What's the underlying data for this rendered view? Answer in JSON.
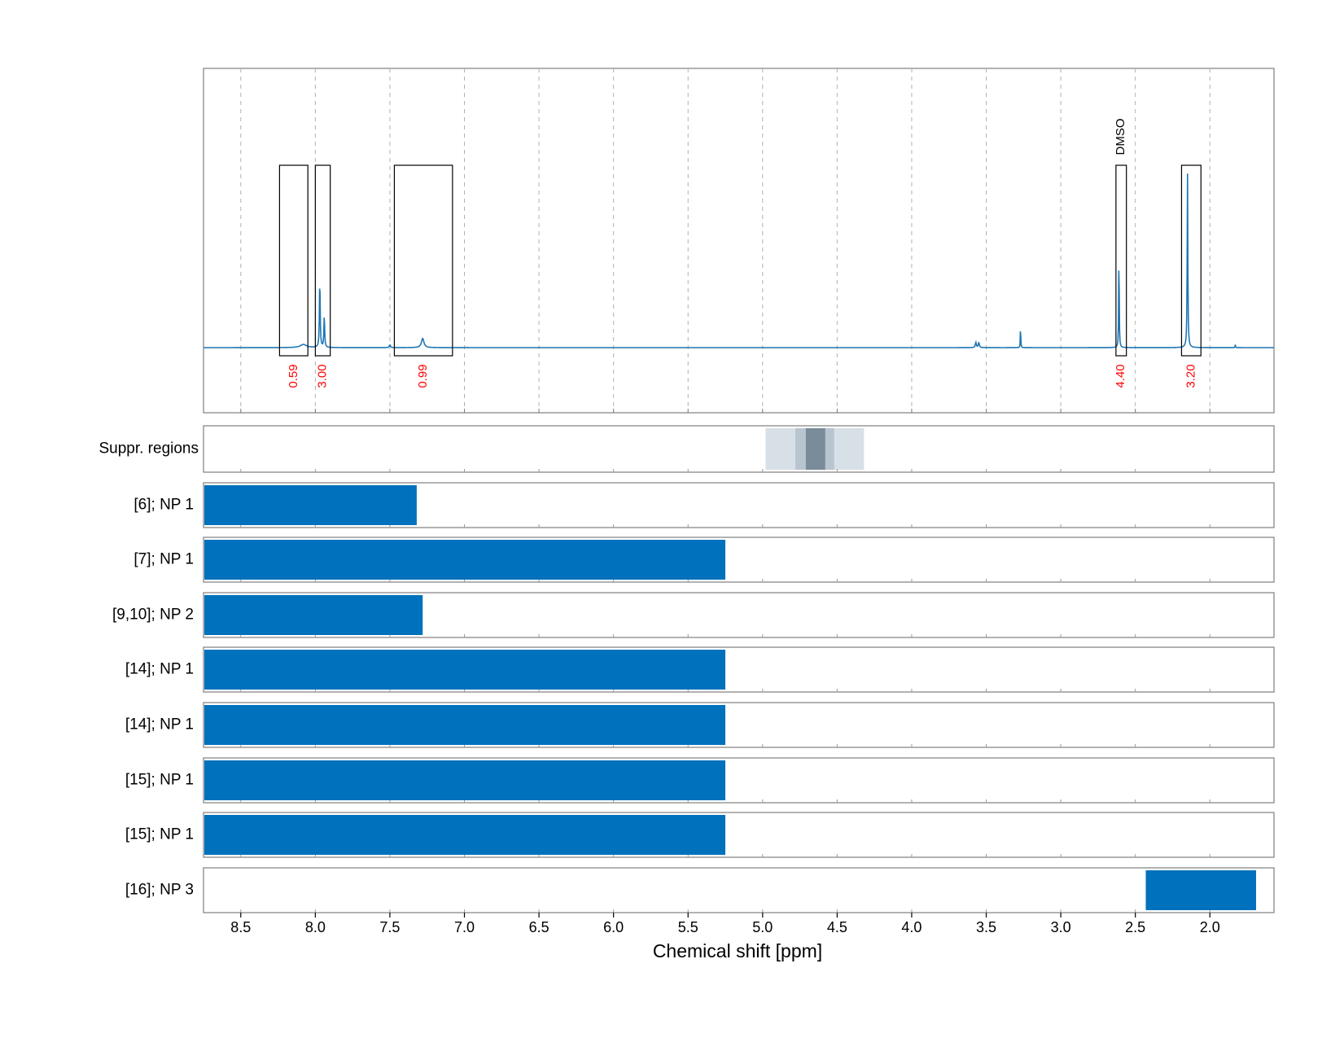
{
  "chart_data": {
    "type": "line",
    "xlabel": "Chemical shift [ppm]",
    "xlim": [
      8.75,
      1.57
    ],
    "x_ticks": [
      8.5,
      8.0,
      7.5,
      7.0,
      6.5,
      6.0,
      5.5,
      5.0,
      4.5,
      4.0,
      3.5,
      3.0,
      2.5,
      2.0
    ],
    "x_tick_labels": [
      "8.5",
      "8.0",
      "7.5",
      "7.0",
      "6.5",
      "6.0",
      "5.5",
      "5.0",
      "4.5",
      "4.0",
      "3.5",
      "3.0",
      "2.5",
      "2.0"
    ],
    "grid": true,
    "colors": {
      "spectrum": "#1f77b4",
      "bar": "#0071bc",
      "integral_label": "#ff0000",
      "suppr_light": "#d8e0e7",
      "suppr_mid": "#b8c4cf",
      "suppr_dark": "#7a8b99"
    },
    "spectrum": {
      "baseline": 0,
      "peaks": [
        {
          "ppm": 8.08,
          "height": 0.012,
          "width": 0.05
        },
        {
          "ppm": 7.97,
          "height": 0.26,
          "width": 0.006
        },
        {
          "ppm": 7.94,
          "height": 0.12,
          "width": 0.006
        },
        {
          "ppm": 7.5,
          "height": 0.01,
          "width": 0.01
        },
        {
          "ppm": 7.28,
          "height": 0.035,
          "width": 0.02
        },
        {
          "ppm": 3.57,
          "height": 0.02,
          "width": 0.008
        },
        {
          "ppm": 3.55,
          "height": 0.02,
          "width": 0.008
        },
        {
          "ppm": 3.27,
          "height": 0.095,
          "width": 0.003
        },
        {
          "ppm": 2.61,
          "height": 0.38,
          "width": 0.004
        },
        {
          "ppm": 2.15,
          "height": 0.66,
          "width": 0.005
        },
        {
          "ppm": 1.83,
          "height": 0.012,
          "width": 0.003
        }
      ]
    },
    "integrals": [
      {
        "from": 8.24,
        "to": 8.05,
        "label": "0.59"
      },
      {
        "from": 8.0,
        "to": 7.9,
        "label": "3.00"
      },
      {
        "from": 7.47,
        "to": 7.08,
        "label": "0.99"
      },
      {
        "from": 2.63,
        "to": 2.56,
        "label": "4.40",
        "annotation": "DMSO"
      },
      {
        "from": 2.19,
        "to": 2.06,
        "label": "3.20"
      }
    ],
    "suppression": {
      "label": "Suppr. regions",
      "bands": [
        {
          "from": 4.98,
          "to": 4.32,
          "shade": "light"
        },
        {
          "from": 4.78,
          "to": 4.52,
          "shade": "mid"
        },
        {
          "from": 4.71,
          "to": 4.58,
          "shade": "dark"
        }
      ]
    },
    "bar_rows": [
      {
        "label": "[6]; NP 1",
        "from": 8.75,
        "to": 7.32
      },
      {
        "label": "[7]; NP 1",
        "from": 8.75,
        "to": 5.25
      },
      {
        "label": "[9,10]; NP 2",
        "from": 8.75,
        "to": 7.28
      },
      {
        "label": "[14]; NP 1",
        "from": 8.75,
        "to": 5.25
      },
      {
        "label": "[14]; NP 1",
        "from": 8.75,
        "to": 5.25
      },
      {
        "label": "[15]; NP 1",
        "from": 8.75,
        "to": 5.25
      },
      {
        "label": "[15]; NP 1",
        "from": 8.75,
        "to": 5.25
      },
      {
        "label": "[16]; NP 3",
        "from": 2.43,
        "to": 1.69
      }
    ]
  }
}
